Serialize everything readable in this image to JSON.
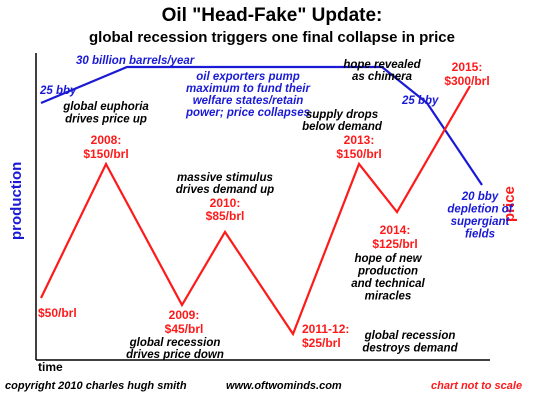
{
  "chart_data": {
    "type": "line",
    "title": "Oil \"Head-Fake\" Update:",
    "subtitle": "global recession triggers one final collapse in price",
    "xlabel": "time",
    "ylabel_left": "production",
    "ylabel_right": "price",
    "grid": false,
    "series": [
      {
        "name": "production",
        "color": "#1a1ad6",
        "points": [
          {
            "x": 2005,
            "y": 25
          },
          {
            "x": 2007.5,
            "y": 30
          },
          {
            "x": 2010.5,
            "y": 30
          },
          {
            "x": 2012.6,
            "y": 30
          },
          {
            "x": 2014.3,
            "y": 25
          },
          {
            "x": 2015.6,
            "y": 20
          }
        ]
      },
      {
        "name": "price",
        "color": "#ff1a1a",
        "points": [
          {
            "x": 2005,
            "y": 50
          },
          {
            "x": 2008,
            "y": 150
          },
          {
            "x": 2009,
            "y": 45
          },
          {
            "x": 2010,
            "y": 85
          },
          {
            "x": 2011.5,
            "y": 25
          },
          {
            "x": 2013,
            "y": 150
          },
          {
            "x": 2014,
            "y": 125
          },
          {
            "x": 2015,
            "y": 300
          }
        ]
      }
    ],
    "production_labels": [
      {
        "id": "p25start",
        "text": "25 bby"
      },
      {
        "id": "p30",
        "text": "30 billion barrels/year"
      },
      {
        "id": "p25end",
        "text": "25 bby"
      },
      {
        "id": "p20",
        "lines": [
          "20 bby",
          "depletion of",
          "supergiant",
          "fields"
        ]
      }
    ],
    "price_labels": [
      {
        "id": "l50",
        "lines": [
          "$50/brl"
        ]
      },
      {
        "id": "l2008",
        "lines": [
          "2008:",
          "$150/brl"
        ]
      },
      {
        "id": "l2009",
        "lines": [
          "2009:",
          "$45/brl"
        ]
      },
      {
        "id": "l2010",
        "lines": [
          "2010:",
          "$85/brl"
        ]
      },
      {
        "id": "l2011",
        "lines": [
          "2011-12:",
          "$25/brl"
        ]
      },
      {
        "id": "l2013",
        "lines": [
          "2013:",
          "$150/brl"
        ]
      },
      {
        "id": "l2014",
        "lines": [
          "2014:",
          "$125/brl"
        ]
      },
      {
        "id": "l2015",
        "lines": [
          "2015:",
          "$300/brl"
        ]
      }
    ],
    "annotations": [
      {
        "id": "a_euphoria",
        "lines": [
          "global euphoria",
          "drives price up"
        ]
      },
      {
        "id": "a_exporters",
        "lines": [
          "oil exporters pump",
          "maximum to fund their",
          "welfare states/retain",
          "power; price collapses"
        ]
      },
      {
        "id": "a_hope",
        "lines": [
          "hope revealed",
          "as chimera"
        ]
      },
      {
        "id": "a_supply",
        "lines": [
          "supply drops",
          "below demand"
        ]
      },
      {
        "id": "a_stimulus",
        "lines": [
          "massive stimulus",
          "drives demand up"
        ]
      },
      {
        "id": "a_tech",
        "lines": [
          "hope of new",
          "production",
          "and technical",
          "miracles"
        ]
      },
      {
        "id": "a_recession1",
        "lines": [
          "global recession",
          "drives price down"
        ]
      },
      {
        "id": "a_recession2",
        "lines": [
          "global recession",
          "destroys demand"
        ]
      }
    ]
  },
  "footer": {
    "copyright": "copyright 2010  charles hugh smith",
    "website": "www.oftwominds.com",
    "note": "chart not to scale"
  }
}
